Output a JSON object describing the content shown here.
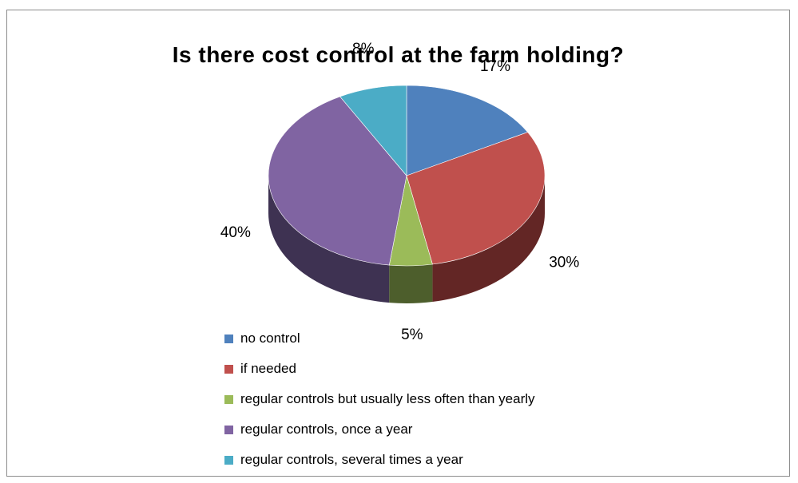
{
  "chart_data": {
    "type": "pie",
    "title": "Is there cost control at the farm holding?",
    "style": "3d",
    "legend_position": "bottom-left",
    "slices": [
      {
        "label": "no control",
        "value": 17,
        "display": "17%",
        "color": "#4f81bd",
        "side_color": "#2f4d71"
      },
      {
        "label": "if needed",
        "value": 30,
        "display": "30%",
        "color": "#c0504d",
        "side_color": "#632625"
      },
      {
        "label": "regular controls but usually less often than yearly",
        "value": 5,
        "display": "5%",
        "color": "#9bbb59",
        "side_color": "#4d5e2c"
      },
      {
        "label": "regular controls, once a year",
        "value": 40,
        "display": "40%",
        "color": "#8064a2",
        "side_color": "#3e3252"
      },
      {
        "label": "regular controls, several times a year",
        "value": 8,
        "display": "8%",
        "color": "#4bacc6",
        "side_color": "#246a7c"
      }
    ]
  }
}
